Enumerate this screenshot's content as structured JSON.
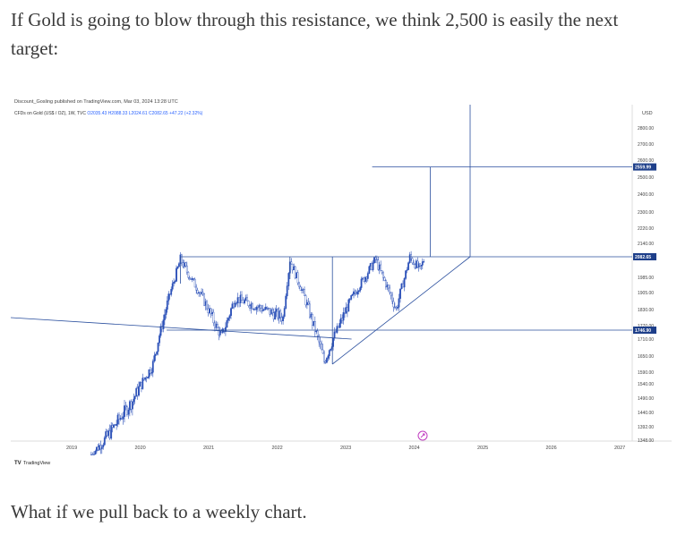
{
  "article": {
    "intro": "If Gold is going to blow through this resistance, we think 2,500 is easily the next target:",
    "outro": "What if we pull back to a weekly chart."
  },
  "chart_data": {
    "type": "candlestick",
    "publisher": "Discount_Gosling published on TradingView.com, Mar 03, 2024 13:28 UTC",
    "legend": {
      "symbol": "CFDs on Gold (US$ / OZ), 1W, TVC",
      "open": "O2035.43",
      "high": "H2088.33",
      "low": "L2024.61",
      "close": "C2082.65",
      "change": "+47.22 (+2.32%)"
    },
    "currency": "USD",
    "y_ticks": [
      "2800.00",
      "2700.00",
      "2600.00",
      "2500.00",
      "2400.00",
      "2300.00",
      "2220.00",
      "2140.00",
      "1985.00",
      "1905.00",
      "1830.00",
      "1770.00",
      "1710.00",
      "1650.00",
      "1590.00",
      "1540.00",
      "1490.00",
      "1440.00",
      "1392.00",
      "1348.00"
    ],
    "x_ticks": [
      {
        "label": "2019",
        "year": 2019.0
      },
      {
        "label": "2020",
        "year": 2020.0
      },
      {
        "label": "2021",
        "year": 2021.0
      },
      {
        "label": "2022",
        "year": 2022.0
      },
      {
        "label": "2023",
        "year": 2023.0
      },
      {
        "label": "2024",
        "year": 2024.0
      },
      {
        "label": "2025",
        "year": 2025.0
      },
      {
        "label": "2026",
        "year": 2026.0
      },
      {
        "label": "2027",
        "year": 2027.0
      }
    ],
    "price_labels": [
      {
        "text": "2559.99",
        "value": 2559.99,
        "color": "#1e3f8a"
      },
      {
        "text": "2082.65",
        "value": 2082.65,
        "color": "#1e3f8a"
      },
      {
        "text": "1746.90",
        "value": 1746.9,
        "color": "#1e3f8a"
      }
    ],
    "key_points": [
      {
        "date": 2019.3,
        "price": 1285
      },
      {
        "date": 2019.9,
        "price": 1480
      },
      {
        "date": 2020.2,
        "price": 1620
      },
      {
        "date": 2020.6,
        "price": 2070
      },
      {
        "date": 2021.2,
        "price": 1720
      },
      {
        "date": 2021.4,
        "price": 1880
      },
      {
        "date": 2022.1,
        "price": 1800
      },
      {
        "date": 2022.2,
        "price": 2070
      },
      {
        "date": 2022.7,
        "price": 1630
      },
      {
        "date": 2023.0,
        "price": 1820
      },
      {
        "date": 2023.3,
        "price": 1990
      },
      {
        "date": 2023.45,
        "price": 2070
      },
      {
        "date": 2023.75,
        "price": 1830
      },
      {
        "date": 2023.95,
        "price": 2080
      },
      {
        "date": 2024.1,
        "price": 2020
      },
      {
        "date": 2024.17,
        "price": 2082.65
      }
    ],
    "annotations": {
      "resistance": 2082.65,
      "target": 2559.99,
      "support": 1746.9,
      "triangle_low": {
        "date": 2022.82,
        "price": 1620
      },
      "projection_start": 2024.25,
      "projection_end": 2024.83
    },
    "footer": "TradingView"
  }
}
